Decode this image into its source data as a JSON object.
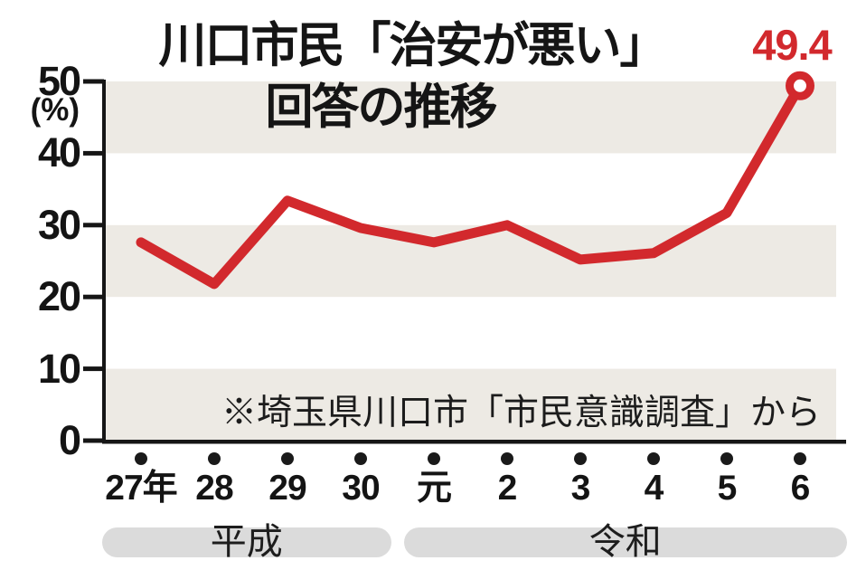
{
  "title": {
    "line1": "川口市民「治安が悪い」",
    "line2": "回答の推移"
  },
  "source_note": "※埼玉県川口市「市民意識調査」から",
  "y_axis": {
    "unit_label": "(%)"
  },
  "chart_data": {
    "type": "line",
    "title": "川口市民「治安が悪い」回答の推移",
    "categories": [
      "27年",
      "28",
      "29",
      "30",
      "元",
      "2",
      "3",
      "4",
      "5",
      "6"
    ],
    "values": [
      27.6,
      21.8,
      33.4,
      29.6,
      27.6,
      30.0,
      25.2,
      26.1,
      31.7,
      49.4
    ],
    "last_point_label": "49.4",
    "ylim": [
      0,
      50
    ],
    "y_ticks": [
      50,
      40,
      30,
      20,
      10,
      0
    ],
    "ylabel": "(%)",
    "xlabel": "",
    "legend": "none",
    "grid": "alternating horizontal bands",
    "eras": [
      {
        "label": "平成",
        "from": 0,
        "to": 3
      },
      {
        "label": "令和",
        "from": 4,
        "to": 9
      }
    ],
    "annotation": "※埼玉県川口市「市民意識調査」から"
  },
  "colors": {
    "series_red": "#d2292d",
    "band_gray": "#edeae4",
    "era_pill_gray": "#dbdbdb",
    "axis_black": "#161616",
    "dot_black": "#1a1a1a"
  }
}
